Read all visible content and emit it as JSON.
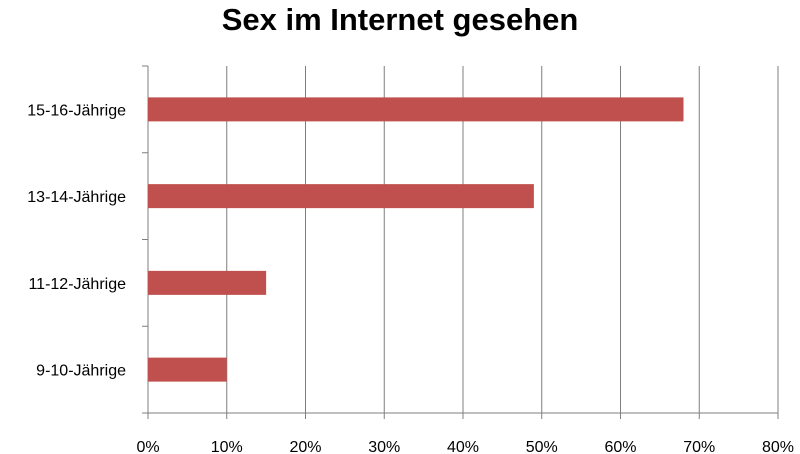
{
  "chart_data": {
    "type": "bar",
    "orientation": "horizontal",
    "title": "Sex im Internet gesehen",
    "categories": [
      "15-16-Jährige",
      "13-14-Jährige",
      "11-12-Jährige",
      "9-10-Jährige"
    ],
    "values": [
      68,
      49,
      15,
      10
    ],
    "xlim": [
      0,
      80
    ],
    "x_ticks": [
      "0%",
      "10%",
      "20%",
      "30%",
      "40%",
      "50%",
      "60%",
      "70%",
      "80%"
    ],
    "grid": "vertical",
    "legend": "none",
    "bar_color": "#c0504d",
    "gridline_color": "#7f7f7f"
  }
}
